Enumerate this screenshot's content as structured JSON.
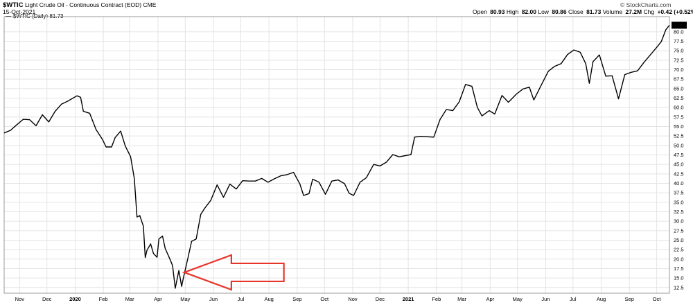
{
  "header": {
    "symbol": "$WTIC",
    "description": "Light Crude Oil - Continuous Contract (EOD)",
    "exchange": "CME",
    "date": "15-Oct-2021",
    "credit": "© StockCharts.com",
    "ohlc": [
      {
        "label": "Open",
        "value": "80.93"
      },
      {
        "label": "High",
        "value": "82.00"
      },
      {
        "label": "Low",
        "value": "80.86"
      },
      {
        "label": "Close",
        "value": "81.73"
      },
      {
        "label": "Volume",
        "value": "27.2M"
      },
      {
        "label": "Chg",
        "value": "+0.42 (+0.52%)"
      }
    ],
    "legend": "$WTIC (Daily) 81.73",
    "last_value_label": "81.73"
  },
  "colors": {
    "line": "#000000",
    "grid": "#e4e4e4",
    "arrow": "#e8352a",
    "last_label_bg": "#000000",
    "last_label_fg": "#ffffff"
  },
  "chart_data": {
    "type": "line",
    "y_ticks": [
      "12.5",
      "15.0",
      "17.5",
      "20.0",
      "22.5",
      "25.0",
      "27.5",
      "30.0",
      "32.5",
      "35.0",
      "37.5",
      "40.0",
      "42.5",
      "45.0",
      "47.5",
      "50.0",
      "52.5",
      "55.0",
      "57.5",
      "60.0",
      "62.5",
      "65.0",
      "67.5",
      "70.0",
      "72.5",
      "75.0",
      "77.5",
      "80.0"
    ],
    "ylim": [
      11,
      84
    ],
    "x_ticks": [
      {
        "label": "Nov",
        "date": "2019-11-01"
      },
      {
        "label": "Dec",
        "date": "2019-12-01"
      },
      {
        "label": "2020",
        "date": "2020-01-01",
        "bold": true
      },
      {
        "label": "Feb",
        "date": "2020-02-01"
      },
      {
        "label": "Mar",
        "date": "2020-03-01"
      },
      {
        "label": "Apr",
        "date": "2020-04-01"
      },
      {
        "label": "May",
        "date": "2020-05-01"
      },
      {
        "label": "Jun",
        "date": "2020-06-01"
      },
      {
        "label": "Jul",
        "date": "2020-07-01"
      },
      {
        "label": "Aug",
        "date": "2020-08-01"
      },
      {
        "label": "Sep",
        "date": "2020-09-01"
      },
      {
        "label": "Oct",
        "date": "2020-10-01"
      },
      {
        "label": "Nov",
        "date": "2020-11-01"
      },
      {
        "label": "Dec",
        "date": "2020-12-01"
      },
      {
        "label": "2021",
        "date": "2021-01-01",
        "bold": true
      },
      {
        "label": "Feb",
        "date": "2021-02-01"
      },
      {
        "label": "Mar",
        "date": "2021-03-01"
      },
      {
        "label": "Apr",
        "date": "2021-04-01"
      },
      {
        "label": "May",
        "date": "2021-05-01"
      },
      {
        "label": "Jun",
        "date": "2021-06-01"
      },
      {
        "label": "Jul",
        "date": "2021-07-01"
      },
      {
        "label": "Aug",
        "date": "2021-08-01"
      },
      {
        "label": "Sep",
        "date": "2021-09-01"
      },
      {
        "label": "Oct",
        "date": "2021-10-01"
      }
    ],
    "xlim": [
      "2019-10-15",
      "2021-10-15"
    ],
    "series": [
      {
        "values": [
          [
            "2019-10-15",
            53.3
          ],
          [
            "2019-10-22",
            54.0
          ],
          [
            "2019-10-29",
            55.5
          ],
          [
            "2019-11-05",
            56.9
          ],
          [
            "2019-11-12",
            56.8
          ],
          [
            "2019-11-19",
            55.2
          ],
          [
            "2019-11-26",
            58.1
          ],
          [
            "2019-12-03",
            56.2
          ],
          [
            "2019-12-10",
            59.0
          ],
          [
            "2019-12-17",
            60.9
          ],
          [
            "2019-12-24",
            61.7
          ],
          [
            "2020-01-03",
            63.1
          ],
          [
            "2020-01-07",
            62.7
          ],
          [
            "2020-01-10",
            59.0
          ],
          [
            "2020-01-17",
            58.5
          ],
          [
            "2020-01-24",
            54.2
          ],
          [
            "2020-01-31",
            51.6
          ],
          [
            "2020-02-04",
            49.6
          ],
          [
            "2020-02-10",
            49.6
          ],
          [
            "2020-02-14",
            52.1
          ],
          [
            "2020-02-20",
            53.8
          ],
          [
            "2020-02-25",
            49.9
          ],
          [
            "2020-03-02",
            47.0
          ],
          [
            "2020-03-06",
            41.3
          ],
          [
            "2020-03-09",
            31.1
          ],
          [
            "2020-03-12",
            31.5
          ],
          [
            "2020-03-16",
            28.7
          ],
          [
            "2020-03-18",
            20.4
          ],
          [
            "2020-03-20",
            22.4
          ],
          [
            "2020-03-24",
            24.0
          ],
          [
            "2020-03-27",
            21.5
          ],
          [
            "2020-03-31",
            20.5
          ],
          [
            "2020-04-02",
            25.3
          ],
          [
            "2020-04-06",
            26.1
          ],
          [
            "2020-04-09",
            22.8
          ],
          [
            "2020-04-14",
            20.1
          ],
          [
            "2020-04-17",
            18.3
          ],
          [
            "2020-04-20",
            12.3
          ],
          [
            "2020-04-24",
            17.0
          ],
          [
            "2020-04-27",
            12.8
          ],
          [
            "2020-04-29",
            15.1
          ],
          [
            "2020-05-04",
            20.4
          ],
          [
            "2020-05-08",
            24.7
          ],
          [
            "2020-05-13",
            25.3
          ],
          [
            "2020-05-18",
            31.8
          ],
          [
            "2020-05-22",
            33.3
          ],
          [
            "2020-05-29",
            35.5
          ],
          [
            "2020-06-05",
            39.6
          ],
          [
            "2020-06-12",
            36.3
          ],
          [
            "2020-06-19",
            39.8
          ],
          [
            "2020-06-26",
            38.5
          ],
          [
            "2020-07-03",
            40.7
          ],
          [
            "2020-07-10",
            40.6
          ],
          [
            "2020-07-17",
            40.6
          ],
          [
            "2020-07-24",
            41.3
          ],
          [
            "2020-07-31",
            40.3
          ],
          [
            "2020-08-07",
            41.2
          ],
          [
            "2020-08-14",
            42.0
          ],
          [
            "2020-08-21",
            42.3
          ],
          [
            "2020-08-28",
            42.9
          ],
          [
            "2020-09-04",
            39.8
          ],
          [
            "2020-09-08",
            36.8
          ],
          [
            "2020-09-14",
            37.3
          ],
          [
            "2020-09-18",
            41.1
          ],
          [
            "2020-09-25",
            40.3
          ],
          [
            "2020-10-02",
            37.1
          ],
          [
            "2020-10-09",
            40.6
          ],
          [
            "2020-10-16",
            40.9
          ],
          [
            "2020-10-23",
            39.9
          ],
          [
            "2020-10-28",
            37.4
          ],
          [
            "2020-11-02",
            36.8
          ],
          [
            "2020-11-09",
            40.3
          ],
          [
            "2020-11-16",
            41.5
          ],
          [
            "2020-11-24",
            45.0
          ],
          [
            "2020-12-01",
            44.6
          ],
          [
            "2020-12-08",
            45.6
          ],
          [
            "2020-12-15",
            47.6
          ],
          [
            "2020-12-22",
            47.0
          ],
          [
            "2021-01-04",
            47.6
          ],
          [
            "2021-01-08",
            52.2
          ],
          [
            "2021-01-15",
            52.4
          ],
          [
            "2021-01-22",
            52.3
          ],
          [
            "2021-01-29",
            52.2
          ],
          [
            "2021-02-05",
            56.9
          ],
          [
            "2021-02-12",
            59.5
          ],
          [
            "2021-02-19",
            59.2
          ],
          [
            "2021-02-26",
            61.5
          ],
          [
            "2021-03-05",
            66.1
          ],
          [
            "2021-03-12",
            65.6
          ],
          [
            "2021-03-18",
            60.0
          ],
          [
            "2021-03-23",
            57.8
          ],
          [
            "2021-03-31",
            59.2
          ],
          [
            "2021-04-06",
            58.3
          ],
          [
            "2021-04-14",
            63.2
          ],
          [
            "2021-04-21",
            61.4
          ],
          [
            "2021-04-30",
            63.6
          ],
          [
            "2021-05-07",
            64.9
          ],
          [
            "2021-05-14",
            65.4
          ],
          [
            "2021-05-19",
            62.0
          ],
          [
            "2021-05-28",
            66.3
          ],
          [
            "2021-06-04",
            69.6
          ],
          [
            "2021-06-11",
            70.9
          ],
          [
            "2021-06-18",
            71.6
          ],
          [
            "2021-06-25",
            74.0
          ],
          [
            "2021-07-02",
            75.2
          ],
          [
            "2021-07-09",
            74.6
          ],
          [
            "2021-07-15",
            71.6
          ],
          [
            "2021-07-19",
            66.4
          ],
          [
            "2021-07-23",
            72.1
          ],
          [
            "2021-07-30",
            73.9
          ],
          [
            "2021-08-06",
            68.3
          ],
          [
            "2021-08-13",
            68.4
          ],
          [
            "2021-08-20",
            62.3
          ],
          [
            "2021-08-27",
            68.7
          ],
          [
            "2021-09-03",
            69.3
          ],
          [
            "2021-09-10",
            69.7
          ],
          [
            "2021-09-17",
            71.9
          ],
          [
            "2021-09-24",
            73.9
          ],
          [
            "2021-10-01",
            75.9
          ],
          [
            "2021-10-06",
            77.4
          ],
          [
            "2021-10-11",
            80.5
          ],
          [
            "2021-10-15",
            81.73
          ]
        ]
      }
    ],
    "annotation": {
      "type": "arrow",
      "points_to": [
        "2020-04-20",
        16.5
      ],
      "tail": [
        "2020-08-28",
        16.5
      ]
    }
  }
}
